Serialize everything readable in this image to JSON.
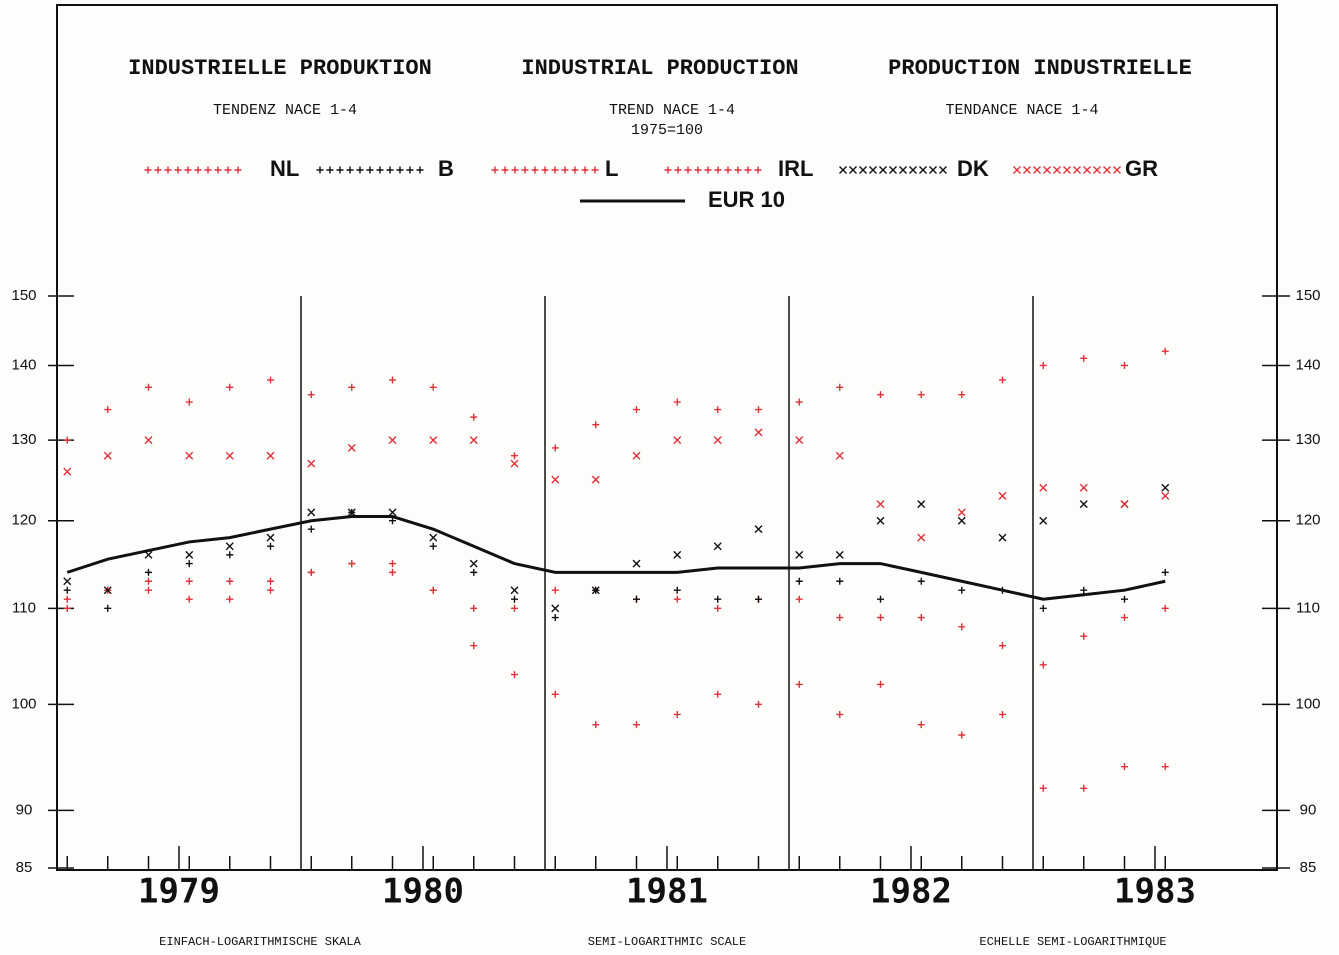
{
  "chart_data": {
    "type": "line",
    "titles": [
      "INDUSTRIELLE PRODUKTION",
      "INDUSTRIAL PRODUCTION",
      "PRODUCTION INDUSTRIELLE"
    ],
    "subtitles": [
      "TENDENZ  NACE 1-4",
      "TREND  NACE 1-4",
      "TENDANCE  NACE 1-4"
    ],
    "note": "1975=100",
    "footers": [
      "EINFACH-LOGARITHMISCHE SKALA",
      "SEMI-LOGARITHMIC SCALE",
      "ECHELLE SEMI-LOGARITHMIQUE"
    ],
    "log_scale": true,
    "xlim": [
      1979,
      1984
    ],
    "xticks": [
      {
        "value": 1979.5,
        "label": "1979"
      },
      {
        "value": 1980.5,
        "label": "1980"
      },
      {
        "value": 1981.5,
        "label": "1981"
      },
      {
        "value": 1982.5,
        "label": "1982"
      },
      {
        "value": 1983.5,
        "label": "1983"
      }
    ],
    "xgrid": [
      1980,
      1981,
      1982,
      1983
    ],
    "ylim": [
      85,
      150
    ],
    "yticks": [
      85,
      90,
      100,
      110,
      120,
      130,
      140,
      150
    ],
    "x": [
      1979.042,
      1979.208,
      1979.375,
      1979.542,
      1979.708,
      1979.875,
      1980.042,
      1980.208,
      1980.375,
      1980.542,
      1980.708,
      1980.875,
      1981.042,
      1981.208,
      1981.375,
      1981.542,
      1981.708,
      1981.875,
      1982.042,
      1982.208,
      1982.375,
      1982.542,
      1982.708,
      1982.875,
      1983.042,
      1983.208,
      1983.375,
      1983.542
    ],
    "series": [
      {
        "name": "NL",
        "color": "#e0303a",
        "marker": "+",
        "values": [
          110,
          112,
          112,
          111,
          111,
          113,
          114,
          115,
          114,
          112,
          110,
          110,
          112,
          112,
          111,
          111,
          110,
          111,
          111,
          109,
          109,
          109,
          108,
          106,
          104,
          107,
          109,
          110
        ]
      },
      {
        "name": "B",
        "color": "#111111",
        "marker": "+",
        "values": [
          112,
          110,
          114,
          115,
          116,
          117,
          119,
          121,
          120,
          117,
          114,
          111,
          109,
          112,
          111,
          112,
          111,
          111,
          113,
          113,
          111,
          113,
          112,
          112,
          110,
          112,
          111,
          114
        ]
      },
      {
        "name": "L",
        "color": "#e0303a",
        "marker": "+",
        "values": [
          111,
          112,
          113,
          113,
          113,
          112,
          114,
          115,
          115,
          112,
          106,
          103,
          101,
          98,
          98,
          99,
          101,
          100,
          102,
          99,
          102,
          98,
          97,
          99,
          92,
          92,
          94,
          94
        ]
      },
      {
        "name": "IRL",
        "color": "#e0303a",
        "marker": "+",
        "values": [
          130,
          134,
          137,
          135,
          137,
          138,
          136,
          137,
          138,
          137,
          133,
          128,
          129,
          132,
          134,
          135,
          134,
          134,
          135,
          137,
          136,
          136,
          136,
          138,
          140,
          141,
          140,
          142
        ]
      },
      {
        "name": "DK",
        "color": "#111111",
        "marker": "x",
        "values": [
          113,
          112,
          116,
          116,
          117,
          118,
          121,
          121,
          121,
          118,
          115,
          112,
          110,
          112,
          115,
          116,
          117,
          119,
          116,
          116,
          120,
          122,
          120,
          118,
          120,
          122,
          122,
          124
        ]
      },
      {
        "name": "GR",
        "color": "#e0303a",
        "marker": "x",
        "values": [
          126,
          128,
          130,
          128,
          128,
          128,
          127,
          129,
          130,
          130,
          130,
          127,
          125,
          125,
          128,
          130,
          130,
          131,
          130,
          128,
          122,
          118,
          121,
          123,
          124,
          124,
          122,
          123
        ]
      },
      {
        "name": "EUR 10",
        "color": "#111111",
        "marker": "line",
        "values": [
          114,
          115.5,
          116.5,
          117.5,
          118,
          119,
          120,
          120.5,
          120.5,
          119,
          117,
          115,
          114,
          114,
          114,
          114,
          114.5,
          114.5,
          114.5,
          115,
          115,
          114,
          113,
          112,
          111,
          111.5,
          112,
          113
        ]
      }
    ]
  }
}
